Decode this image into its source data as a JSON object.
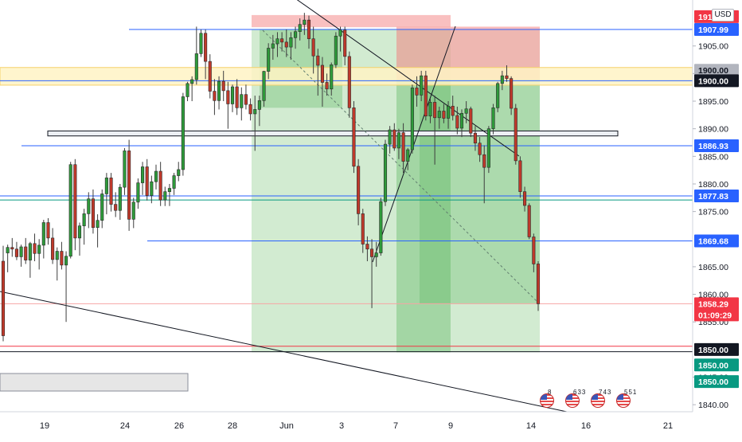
{
  "instrument": {
    "currency": "USD"
  },
  "chart_data": {
    "type": "candlestick",
    "title": "",
    "ylim": [
      1838,
      1910
    ],
    "price_scale_ticks": [
      "1905.00",
      "1900.00",
      "1895.00",
      "1890.00",
      "1885.00",
      "1880.00",
      "1875.00",
      "1865.00",
      "1860.00",
      "1855.00",
      "1845.00",
      "1840.00"
    ],
    "x_axis_labels": [
      "19",
      "24",
      "26",
      "28",
      "Jun",
      "3",
      "7",
      "9",
      "14",
      "16",
      "21"
    ],
    "price_tags": [
      {
        "label": "1910.31",
        "price": 1910.31,
        "color": "#f23645",
        "text_color": "#ffffff"
      },
      {
        "label": "1907.99",
        "price": 1907.99,
        "color": "#2962ff",
        "text_color": "#ffffff"
      },
      {
        "label": "1900.00",
        "price": 1900.6,
        "color": "#b2b5be",
        "text_color": "#131722"
      },
      {
        "label": "1900.00",
        "price": 1898.7,
        "color": "#131722",
        "text_color": "#ffffff"
      },
      {
        "label": "1886.93",
        "price": 1886.93,
        "color": "#2962ff",
        "text_color": "#ffffff"
      },
      {
        "label": "1877.83",
        "price": 1877.83,
        "color": "#2962ff",
        "text_color": "#ffffff"
      },
      {
        "label": "1869.68",
        "price": 1869.68,
        "color": "#2962ff",
        "text_color": "#ffffff"
      },
      {
        "label": "1858.29",
        "price": 1858.29,
        "color": "#f23645",
        "text_color": "#ffffff",
        "sub_label": "01:09:29"
      },
      {
        "label": "1850.00",
        "price": 1850.0,
        "color": "#131722",
        "text_color": "#ffffff"
      },
      {
        "label": "1850.00",
        "price": 1847.2,
        "color": "#089981",
        "text_color": "#ffffff"
      },
      {
        "label": "1850.00",
        "price": 1844.2,
        "color": "#089981",
        "text_color": "#ffffff"
      }
    ],
    "horizontal_lines": [
      {
        "price": 1907.99,
        "color": "#2962ff",
        "name": ""
      },
      {
        "price": 1898.7,
        "color": "#2962ff",
        "name": ""
      },
      {
        "price": 1886.93,
        "color": "#2962ff",
        "name": ""
      },
      {
        "price": 1877.83,
        "color": "#2962ff",
        "name": ""
      },
      {
        "price": 1877.1,
        "color": "#089981",
        "name": ""
      },
      {
        "price": 1869.68,
        "color": "#2962ff",
        "name": ""
      },
      {
        "price": 1858.29,
        "color": "#f7a5a5",
        "name": ""
      },
      {
        "price": 1850.6,
        "color": "#f23645",
        "name": ""
      },
      {
        "price": 1849.6,
        "color": "#131722",
        "name": ""
      }
    ],
    "series": [
      {
        "name": "",
        "ohlc": [
          [
            1866.0,
            1868.8,
            1851.5,
            1852.5
          ],
          [
            1867.5,
            1869.0,
            1864.0,
            1868.5
          ],
          [
            1868.5,
            1870.2,
            1866.8,
            1868.2
          ],
          [
            1868.2,
            1869.5,
            1866.2,
            1866.8
          ],
          [
            1866.8,
            1869.0,
            1865.0,
            1868.6
          ],
          [
            1868.6,
            1870.2,
            1865.5,
            1866.2
          ],
          [
            1866.2,
            1869.5,
            1863.0,
            1869.2
          ],
          [
            1869.2,
            1871.0,
            1866.0,
            1867.4
          ],
          [
            1867.4,
            1870.0,
            1864.5,
            1868.9
          ],
          [
            1868.9,
            1873.5,
            1866.5,
            1873.0
          ],
          [
            1873.0,
            1873.8,
            1869.0,
            1870.2
          ],
          [
            1870.2,
            1872.0,
            1865.5,
            1866.3
          ],
          [
            1866.3,
            1868.5,
            1862.5,
            1867.8
          ],
          [
            1867.8,
            1869.5,
            1864.5,
            1865.3
          ],
          [
            1865.3,
            1867.8,
            1855.0,
            1866.9
          ],
          [
            1866.9,
            1884.0,
            1866.5,
            1883.5
          ],
          [
            1883.5,
            1884.5,
            1868.0,
            1870.2
          ],
          [
            1870.2,
            1873.0,
            1867.0,
            1872.4
          ],
          [
            1872.4,
            1875.5,
            1869.0,
            1874.6
          ],
          [
            1874.6,
            1878.5,
            1872.0,
            1877.3
          ],
          [
            1877.3,
            1879.0,
            1871.0,
            1872.1
          ],
          [
            1872.1,
            1874.5,
            1868.5,
            1873.4
          ],
          [
            1873.4,
            1879.0,
            1872.0,
            1878.2
          ],
          [
            1878.2,
            1882.0,
            1874.5,
            1881.1
          ],
          [
            1881.1,
            1882.0,
            1875.0,
            1876.3
          ],
          [
            1876.3,
            1878.5,
            1874.0,
            1875.2
          ],
          [
            1875.2,
            1880.0,
            1873.5,
            1879.4
          ],
          [
            1879.4,
            1886.5,
            1878.0,
            1886.0
          ],
          [
            1886.0,
            1888.0,
            1871.5,
            1873.6
          ],
          [
            1873.6,
            1877.5,
            1872.0,
            1876.7
          ],
          [
            1876.7,
            1881.0,
            1875.5,
            1880.2
          ],
          [
            1880.2,
            1884.0,
            1878.0,
            1883.1
          ],
          [
            1883.1,
            1884.5,
            1877.0,
            1877.9
          ],
          [
            1877.9,
            1881.5,
            1876.5,
            1880.4
          ],
          [
            1880.4,
            1883.5,
            1879.0,
            1882.3
          ],
          [
            1882.3,
            1884.0,
            1876.0,
            1877.1
          ],
          [
            1877.1,
            1879.5,
            1876.0,
            1878.6
          ],
          [
            1878.6,
            1880.0,
            1876.0,
            1879.2
          ],
          [
            1879.2,
            1882.0,
            1878.0,
            1881.5
          ],
          [
            1881.5,
            1884.0,
            1880.5,
            1882.6
          ],
          [
            1882.6,
            1896.5,
            1881.5,
            1895.8
          ],
          [
            1895.8,
            1898.5,
            1895.0,
            1898.2
          ],
          [
            1898.2,
            1899.5,
            1895.0,
            1898.9
          ],
          [
            1898.9,
            1908.5,
            1898.0,
            1903.6
          ],
          [
            1903.6,
            1908.0,
            1903.0,
            1907.3
          ],
          [
            1907.3,
            1908.0,
            1899.0,
            1902.2
          ],
          [
            1902.2,
            1903.5,
            1895.5,
            1896.8
          ],
          [
            1896.8,
            1899.0,
            1892.5,
            1895.1
          ],
          [
            1895.1,
            1899.5,
            1893.5,
            1898.6
          ],
          [
            1898.6,
            1900.5,
            1895.0,
            1896.9
          ],
          [
            1896.9,
            1898.5,
            1890.0,
            1894.5
          ],
          [
            1894.5,
            1898.0,
            1893.0,
            1897.6
          ],
          [
            1897.6,
            1899.0,
            1892.5,
            1893.8
          ],
          [
            1893.8,
            1897.5,
            1891.5,
            1896.2
          ],
          [
            1896.2,
            1898.0,
            1893.5,
            1894.4
          ],
          [
            1894.4,
            1895.5,
            1891.5,
            1892.7
          ],
          [
            1892.7,
            1896.0,
            1886.0,
            1893.5
          ],
          [
            1893.5,
            1896.0,
            1890.5,
            1895.1
          ],
          [
            1895.1,
            1900.5,
            1894.0,
            1900.4
          ],
          [
            1900.4,
            1905.5,
            1899.0,
            1904.6
          ],
          [
            1904.6,
            1907.0,
            1902.5,
            1905.4
          ],
          [
            1905.4,
            1907.5,
            1903.0,
            1906.3
          ],
          [
            1906.3,
            1907.5,
            1904.0,
            1905.7
          ],
          [
            1905.7,
            1908.0,
            1903.0,
            1904.8
          ],
          [
            1904.8,
            1907.5,
            1902.5,
            1906.5
          ],
          [
            1906.5,
            1908.5,
            1904.5,
            1907.6
          ],
          [
            1907.6,
            1910.0,
            1906.0,
            1908.9
          ],
          [
            1908.9,
            1911.0,
            1907.0,
            1909.7
          ],
          [
            1909.7,
            1910.5,
            1904.5,
            1906.3
          ],
          [
            1906.3,
            1908.5,
            1900.0,
            1903.2
          ],
          [
            1903.2,
            1904.5,
            1896.0,
            1901.5
          ],
          [
            1901.5,
            1903.0,
            1894.0,
            1898.4
          ],
          [
            1898.4,
            1900.0,
            1896.0,
            1897.2
          ],
          [
            1897.2,
            1902.0,
            1896.0,
            1901.6
          ],
          [
            1901.6,
            1907.5,
            1901.0,
            1906.8
          ],
          [
            1906.8,
            1908.5,
            1904.0,
            1907.9
          ],
          [
            1907.9,
            1908.5,
            1901.5,
            1903.1
          ],
          [
            1903.1,
            1904.0,
            1892.0,
            1893.8
          ],
          [
            1893.8,
            1895.0,
            1882.0,
            1883.2
          ],
          [
            1883.2,
            1884.5,
            1872.5,
            1874.6
          ],
          [
            1874.6,
            1875.5,
            1867.5,
            1869.1
          ],
          [
            1869.1,
            1870.5,
            1866.0,
            1868.2
          ],
          [
            1868.2,
            1870.0,
            1857.5,
            1866.8
          ],
          [
            1866.8,
            1869.5,
            1865.0,
            1867.5
          ],
          [
            1867.5,
            1877.5,
            1867.0,
            1876.8
          ],
          [
            1876.8,
            1888.0,
            1876.0,
            1887.2
          ],
          [
            1887.2,
            1890.5,
            1885.5,
            1889.8
          ],
          [
            1889.8,
            1891.0,
            1886.0,
            1886.5
          ],
          [
            1886.5,
            1890.0,
            1884.5,
            1889.3
          ],
          [
            1889.3,
            1891.0,
            1882.0,
            1884.1
          ],
          [
            1884.1,
            1886.5,
            1882.5,
            1886.2
          ],
          [
            1886.2,
            1898.0,
            1885.5,
            1897.4
          ],
          [
            1897.4,
            1899.5,
            1894.0,
            1896.1
          ],
          [
            1896.1,
            1900.5,
            1895.0,
            1899.6
          ],
          [
            1899.6,
            1900.5,
            1891.5,
            1892.3
          ],
          [
            1892.3,
            1895.5,
            1891.0,
            1894.8
          ],
          [
            1894.8,
            1896.0,
            1883.5,
            1892.0
          ],
          [
            1892.0,
            1894.0,
            1890.0,
            1893.2
          ],
          [
            1893.2,
            1894.5,
            1891.0,
            1891.9
          ],
          [
            1891.9,
            1895.0,
            1890.0,
            1894.1
          ],
          [
            1894.1,
            1896.0,
            1891.5,
            1892.4
          ],
          [
            1892.4,
            1894.0,
            1889.0,
            1890.1
          ],
          [
            1890.1,
            1893.5,
            1888.5,
            1892.8
          ],
          [
            1892.8,
            1895.0,
            1891.0,
            1893.6
          ],
          [
            1893.6,
            1894.0,
            1888.5,
            1889.2
          ],
          [
            1889.2,
            1890.5,
            1886.0,
            1887.4
          ],
          [
            1887.4,
            1888.5,
            1884.0,
            1885.3
          ],
          [
            1885.3,
            1887.0,
            1876.5,
            1883.0
          ],
          [
            1883.0,
            1890.5,
            1882.0,
            1890.0
          ],
          [
            1890.0,
            1894.5,
            1889.0,
            1893.8
          ],
          [
            1893.8,
            1898.5,
            1893.0,
            1898.2
          ],
          [
            1898.2,
            1900.5,
            1897.0,
            1899.6
          ],
          [
            1899.6,
            1901.5,
            1898.5,
            1899.1
          ],
          [
            1899.1,
            1899.5,
            1892.5,
            1893.7
          ],
          [
            1893.7,
            1894.5,
            1883.5,
            1884.2
          ],
          [
            1884.2,
            1885.0,
            1877.5,
            1878.6
          ],
          [
            1878.6,
            1879.5,
            1875.0,
            1876.1
          ],
          [
            1876.1,
            1876.5,
            1870.0,
            1870.4
          ],
          [
            1870.4,
            1871.0,
            1864.0,
            1865.5
          ],
          [
            1865.5,
            1866.0,
            1857.0,
            1858.29
          ]
        ]
      }
    ]
  }
}
